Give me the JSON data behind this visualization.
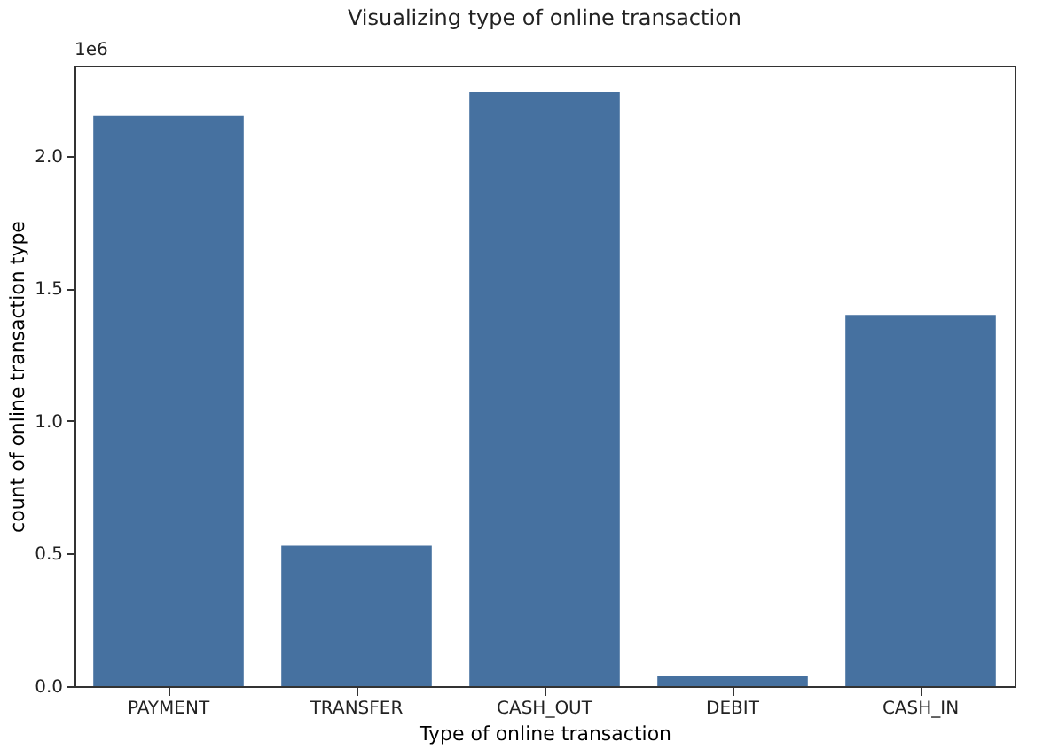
{
  "chart_data": {
    "type": "bar",
    "title": "Visualizing type of online transaction",
    "xlabel": "Type of online transaction",
    "ylabel": "count of online transaction type",
    "categories": [
      "PAYMENT",
      "TRANSFER",
      "CASH_OUT",
      "DEBIT",
      "CASH_IN"
    ],
    "values": [
      2.15,
      0.53,
      2.24,
      0.04,
      1.4
    ],
    "color": "#4671a0",
    "ylim": [
      0,
      2.34
    ],
    "yticks": [
      {
        "value": 0,
        "label": "0.0"
      },
      {
        "value": 0.5,
        "label": "0.5"
      },
      {
        "value": 1,
        "label": "1.0"
      },
      {
        "value": 1.5,
        "label": "1.5"
      },
      {
        "value": 2,
        "label": "2.0"
      }
    ],
    "annotations": [
      "1e6"
    ],
    "grid": false
  }
}
